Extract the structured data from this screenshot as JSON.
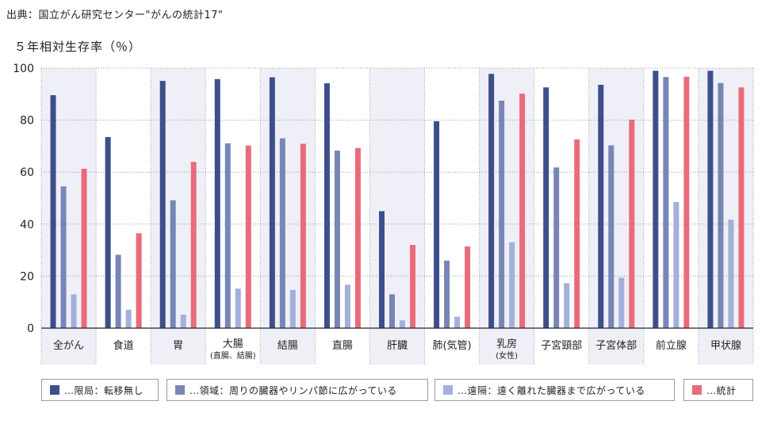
{
  "header": {
    "source": "出典：国立がん研究センター\"がんの統計17\"",
    "ylabel": "５年相対生存率（％）"
  },
  "colors": {
    "series": [
      "#3d4f8a",
      "#7886b6",
      "#a3b0d9",
      "#e96b7b"
    ],
    "band": "#eff0f7"
  },
  "legend": [
    {
      "label": "…限局：転移無し"
    },
    {
      "label": "…領域：周りの臓器やリンパ節に広がっている"
    },
    {
      "label": "…遠隔：遠く離れた臓器まで広がっている"
    },
    {
      "label": "…統計"
    }
  ],
  "chart_data": {
    "type": "bar",
    "title": "",
    "ylabel": "５年相対生存率（％）",
    "ylim": [
      0,
      100
    ],
    "yticks": [
      0,
      20,
      40,
      60,
      80,
      100
    ],
    "categories": [
      {
        "label": "全がん",
        "sub": ""
      },
      {
        "label": "食道",
        "sub": ""
      },
      {
        "label": "胃",
        "sub": ""
      },
      {
        "label": "大腸",
        "sub": "(直腸、結腸)"
      },
      {
        "label": "結腸",
        "sub": ""
      },
      {
        "label": "直腸",
        "sub": ""
      },
      {
        "label": "肝臓",
        "sub": ""
      },
      {
        "label": "肺(気管)",
        "sub": ""
      },
      {
        "label": "乳房",
        "sub": "(女性)"
      },
      {
        "label": "子宮頸部",
        "sub": ""
      },
      {
        "label": "子宮体部",
        "sub": ""
      },
      {
        "label": "前立腺",
        "sub": ""
      },
      {
        "label": "甲状腺",
        "sub": ""
      }
    ],
    "series": [
      {
        "name": "限局",
        "values": [
          89.6,
          73.5,
          95.1,
          95.8,
          96.5,
          94.2,
          45.0,
          79.6,
          97.8,
          92.6,
          93.6,
          99.0,
          99.0
        ]
      },
      {
        "name": "領域",
        "values": [
          54.5,
          28.2,
          49.2,
          71.1,
          73.0,
          68.3,
          13.0,
          26.0,
          87.5,
          61.8,
          70.3,
          96.6,
          94.3
        ]
      },
      {
        "name": "遠隔",
        "values": [
          13.0,
          7.1,
          5.2,
          15.2,
          14.7,
          16.7,
          3.0,
          4.4,
          33.0,
          17.3,
          19.4,
          48.5,
          41.7
        ]
      },
      {
        "name": "統計",
        "values": [
          61.3,
          36.5,
          63.9,
          70.2,
          70.9,
          69.3,
          32.0,
          31.4,
          90.2,
          72.6,
          80.2,
          96.7,
          92.6
        ]
      }
    ]
  }
}
